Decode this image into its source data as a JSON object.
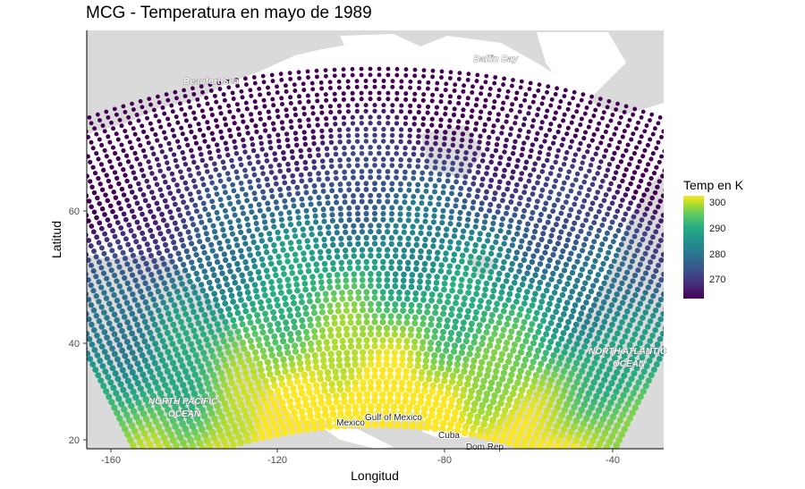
{
  "chart_data": {
    "type": "scatter",
    "title": "MCG - Temperatura en mayo de 1989",
    "xlabel": "Longitud",
    "ylabel": "Latitud",
    "x_ticks": [
      "-160",
      "-120",
      "-80",
      "-40"
    ],
    "y_ticks": [
      "20",
      "40",
      "60"
    ],
    "legend": {
      "title": "Temp en K",
      "labels": [
        "300",
        "290",
        "280",
        "270"
      ],
      "placement": "right",
      "colormap": "viridis",
      "range": [
        265,
        302
      ]
    },
    "map_labels": [
      "Beaufort Sea",
      "Baffin Bay",
      "NORTH PACIFIC OCEAN",
      "NORTH ATLANTIC OCEAN",
      "Mexico",
      "Cuba",
      "Gulf of Mexico",
      "Dom Rep"
    ],
    "background_color": "#dadada",
    "land_color": "#ffffff"
  }
}
